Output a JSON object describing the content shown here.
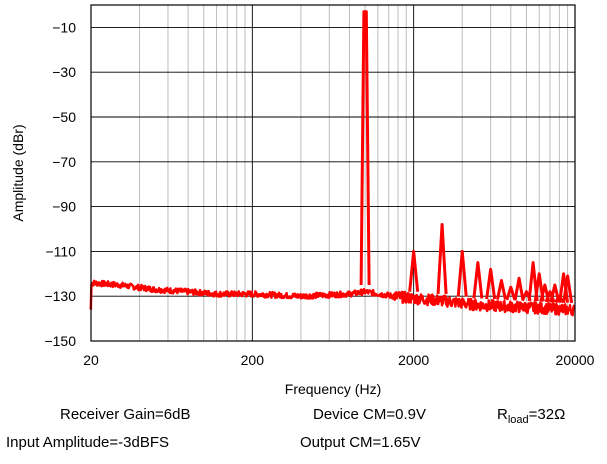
{
  "chart_data": {
    "type": "line",
    "xlabel": "Frequency (Hz)",
    "ylabel": "Amplitude (dBr)",
    "x_scale": "log",
    "xlim": [
      20,
      20000
    ],
    "ylim": [
      -150,
      0
    ],
    "x_ticks": [
      20,
      200,
      2000,
      20000
    ],
    "x_tick_labels": [
      "20",
      "200",
      "2000",
      "20000"
    ],
    "y_ticks": [
      -10,
      -30,
      -50,
      -70,
      -90,
      -110,
      -130,
      -150
    ],
    "y_tick_labels": [
      "−10",
      "−30",
      "−50",
      "−70",
      "−90",
      "−110",
      "−130",
      "−150"
    ],
    "grid": true,
    "series": [
      {
        "color": "#ff0000",
        "noise_floor": [
          [
            20,
            -124
          ],
          [
            30,
            -125
          ],
          [
            50,
            -127
          ],
          [
            80,
            -128
          ],
          [
            120,
            -129
          ],
          [
            200,
            -129
          ],
          [
            400,
            -130
          ],
          [
            800,
            -129
          ],
          [
            1000,
            -128
          ],
          [
            1500,
            -130
          ],
          [
            2000,
            -131
          ],
          [
            3000,
            -132
          ],
          [
            5000,
            -134
          ],
          [
            10000,
            -135
          ],
          [
            18000,
            -136
          ]
        ],
        "x": [
          1000,
          2000,
          3000,
          4000,
          5000,
          6000,
          7000,
          8000,
          9000,
          10000,
          11000,
          12000,
          13000,
          14000,
          15000,
          16000,
          17000,
          18000
        ],
        "y": [
          -3,
          -110,
          -98,
          -110,
          -115,
          -118,
          -123,
          -126,
          -122,
          -128,
          -115,
          -120,
          -125,
          -128,
          -125,
          -130,
          -120,
          -121
        ]
      }
    ],
    "annotations": {
      "receiver_gain": "Receiver Gain=6dB",
      "device_cm": "Device CM=0.9V",
      "rload_prefix": "R",
      "rload_sub": "load",
      "rload_suffix": "=32Ω",
      "input_amplitude": "Input Amplitude=-3dBFS",
      "output_cm": "Output CM=1.65V"
    }
  }
}
